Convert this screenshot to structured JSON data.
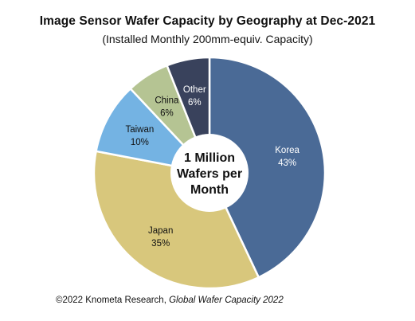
{
  "chart_data": {
    "type": "pie",
    "title": "Image Sensor Wafer Capacity by Geography at Dec-2021",
    "subtitle": "(Installed Monthly 200mm-equiv. Capacity)",
    "center_label_lines": [
      "1 Million",
      "Wafers per",
      "Month"
    ],
    "slices": [
      {
        "label": "Korea",
        "value": 43,
        "value_label": "43%",
        "color": "#4a6a96",
        "text_color": "#ffffff"
      },
      {
        "label": "Japan",
        "value": 35,
        "value_label": "35%",
        "color": "#d8c77c",
        "text_color": "#111111"
      },
      {
        "label": "Taiwan",
        "value": 10,
        "value_label": "10%",
        "color": "#74b3e3",
        "text_color": "#111111"
      },
      {
        "label": "China",
        "value": 6,
        "value_label": "6%",
        "color": "#b5c493",
        "text_color": "#111111"
      },
      {
        "label": "Other",
        "value": 6,
        "value_label": "6%",
        "color": "#39425c",
        "text_color": "#ffffff"
      }
    ]
  },
  "footer": {
    "prefix": "©2022 Knometa Research, ",
    "source": "Global Wafer Capacity 2022"
  }
}
